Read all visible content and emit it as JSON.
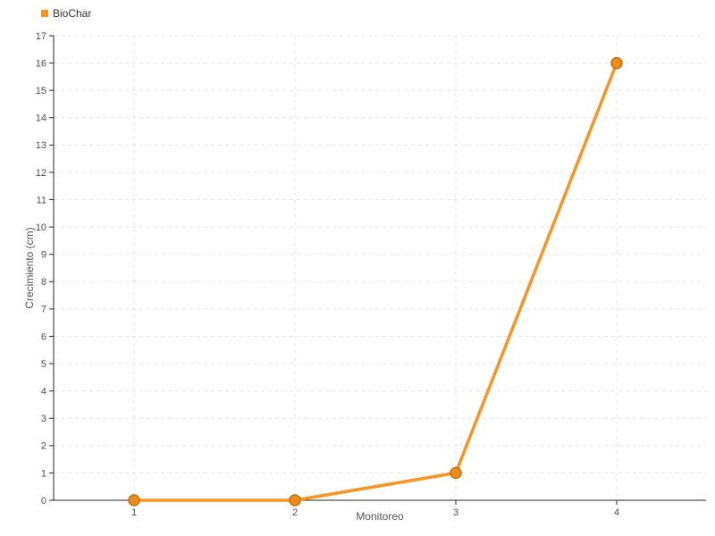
{
  "chart_data": {
    "type": "line",
    "x": [
      1,
      2,
      3,
      4
    ],
    "series": [
      {
        "name": "BioChar",
        "values": [
          0,
          0,
          1,
          16
        ],
        "line_color": "#f89420",
        "marker_fill": "#ef8c17",
        "marker_stroke": "#bf7013"
      }
    ],
    "title": "",
    "xlabel": "Monitoreo",
    "ylabel": "Crecimiento (cm)",
    "ylim": [
      0,
      17
    ],
    "y_tick_step": 1,
    "grid": "dashed",
    "grid_color": "#e4e4e4",
    "axis_color": "#262626",
    "tick_label_color": "#4d4d4d",
    "axis_label_color": "#555555",
    "legend_position": "top-left"
  }
}
